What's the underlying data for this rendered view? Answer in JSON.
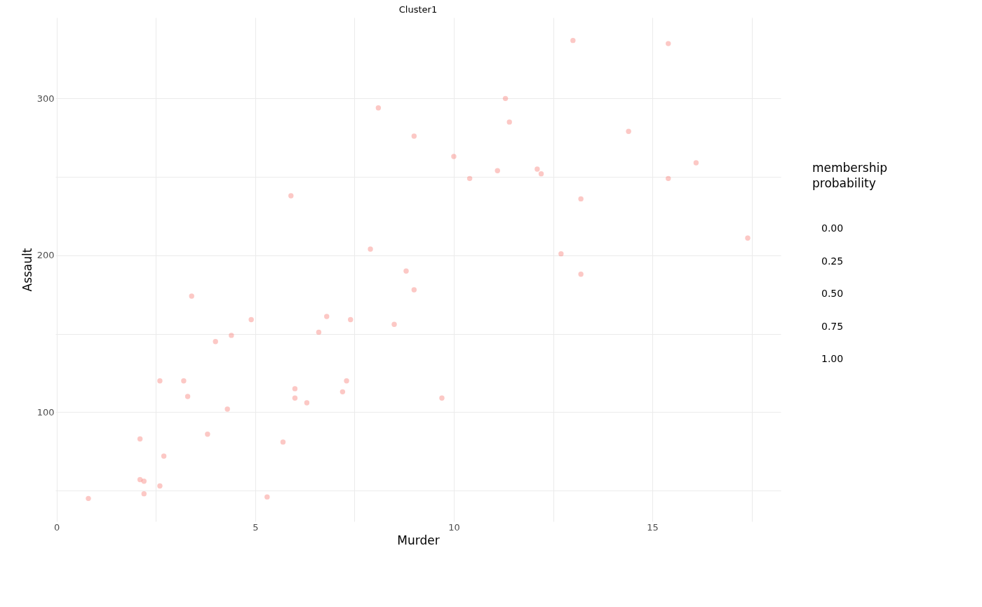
{
  "chart_data": {
    "type": "scatter",
    "title": "Cluster1",
    "xlabel": "Murder",
    "ylabel": "Assault",
    "legend_title": "membership probability",
    "grid": true,
    "marker": "circle",
    "annotations": [
      "0.00",
      "0.25",
      "0.50",
      "0.75",
      "1.00"
    ],
    "xlim": [
      -0.03,
      18.23
    ],
    "xticks": [
      0,
      {
        "value": 2.5,
        "label": null
      },
      5,
      {
        "value": 7.5,
        "label": null
      },
      10,
      {
        "value": 12.5,
        "label": null
      },
      15,
      {
        "value": 17.5,
        "label": null
      }
    ],
    "ylim": [
      30.4,
      351.6
    ],
    "yticks": [
      {
        "value": 50,
        "label": null
      },
      100,
      {
        "value": 150,
        "label": null
      },
      200,
      {
        "value": 250,
        "label": null
      },
      300
    ],
    "series": [
      {
        "color": "#f8766d",
        "x": [
          13.2,
          10.0,
          8.1,
          8.8,
          9.0,
          7.9,
          3.3,
          5.9,
          15.4,
          17.4,
          5.3,
          2.6,
          10.4,
          7.2,
          2.2,
          6.0,
          9.7,
          15.4,
          2.1,
          11.3,
          4.4,
          12.1,
          2.7,
          16.1,
          9.0,
          6.0,
          4.3,
          12.2,
          2.1,
          7.4,
          11.4,
          11.1,
          13.0,
          0.8,
          7.3,
          6.6,
          4.9,
          6.3,
          3.4,
          14.4,
          3.8,
          13.2,
          12.7,
          3.2,
          2.2,
          8.5,
          4.0,
          5.7,
          2.6,
          6.8
        ],
        "values": [
          236,
          263,
          294,
          190,
          276,
          204,
          110,
          238,
          335,
          211,
          46,
          120,
          249,
          113,
          56,
          115,
          109,
          249,
          83,
          300,
          149,
          255,
          72,
          259,
          178,
          109,
          102,
          252,
          57,
          159,
          285,
          254,
          337,
          45,
          120,
          151,
          159,
          106,
          174,
          279,
          86,
          188,
          201,
          120,
          48,
          156,
          145,
          81,
          53,
          161
        ]
      }
    ]
  }
}
